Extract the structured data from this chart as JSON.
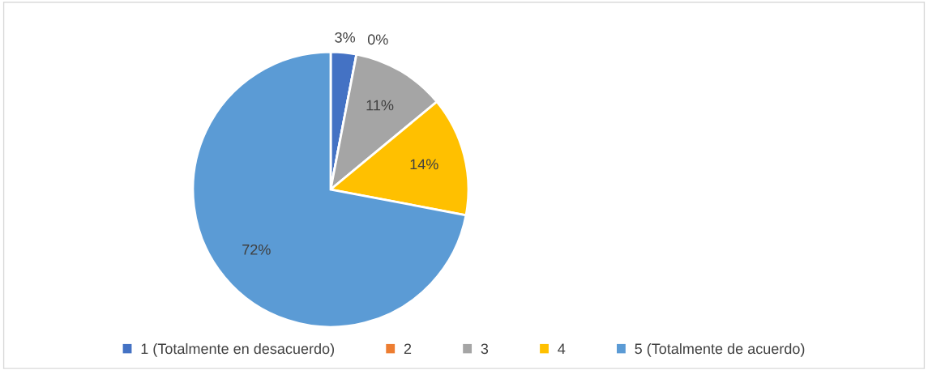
{
  "chart_data": {
    "type": "pie",
    "categories": [
      "1 (Totalmente en desacuerdo)",
      "2",
      "3",
      "4",
      "5 (Totalmente de acuerdo)"
    ],
    "values": [
      3,
      0,
      11,
      14,
      72
    ],
    "colors": [
      "#4472c4",
      "#ed7d31",
      "#a5a5a5",
      "#ffc000",
      "#5b9bd5"
    ],
    "value_labels": [
      "3%",
      "0%",
      "11%",
      "14%",
      "72%"
    ],
    "legend": "bottom"
  }
}
